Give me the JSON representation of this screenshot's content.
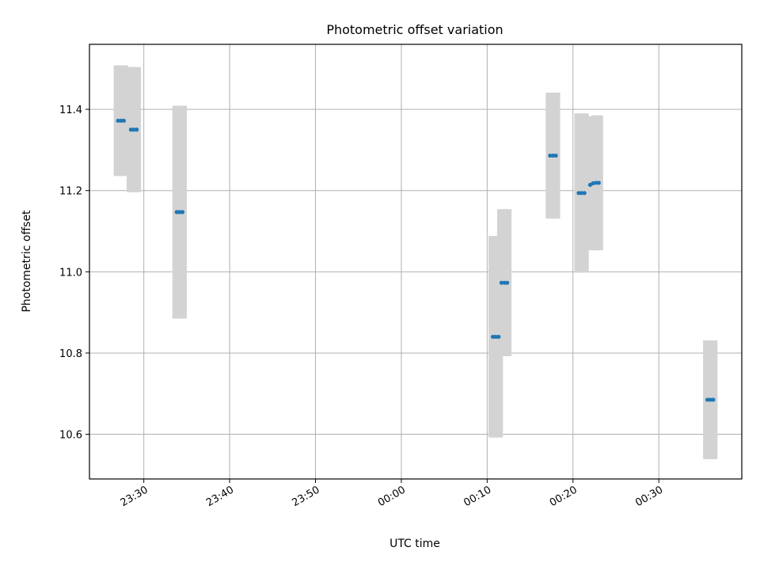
{
  "chart_data": {
    "type": "scatter",
    "title": "Photometric offset variation",
    "xlabel": "UTC time",
    "ylabel": "Photometric offset",
    "x_unit": "UTC HH:MM",
    "xlim": [
      "23:23:40",
      "00:39:40"
    ],
    "ylim": [
      10.49,
      11.56
    ],
    "xticks": [
      "23:30",
      "23:40",
      "23:50",
      "00:00",
      "00:10",
      "00:20",
      "00:30"
    ],
    "yticks": [
      10.6,
      10.8,
      11.0,
      11.2,
      11.4
    ],
    "grid": true,
    "point_color": "#1f77b4",
    "error_band_color": "#d3d3d3",
    "series": [
      {
        "points": [
          {
            "time": "23:27:00",
            "y": 11.372,
            "err": 0.136
          },
          {
            "time": "23:27:20",
            "y": 11.372,
            "err": 0.136
          },
          {
            "time": "23:27:40",
            "y": 11.372,
            "err": 0.136
          },
          {
            "time": "23:28:30",
            "y": 11.35,
            "err": 0.154
          },
          {
            "time": "23:28:50",
            "y": 11.35,
            "err": 0.154
          },
          {
            "time": "23:29:10",
            "y": 11.35,
            "err": 0.154
          },
          {
            "time": "23:33:50",
            "y": 11.147,
            "err": 0.262
          },
          {
            "time": "23:34:10",
            "y": 11.147,
            "err": 0.262
          },
          {
            "time": "23:34:30",
            "y": 11.147,
            "err": 0.262
          },
          {
            "time": "00:10:40",
            "y": 10.84,
            "err": 0.248
          },
          {
            "time": "00:11:00",
            "y": 10.84,
            "err": 0.248
          },
          {
            "time": "00:11:20",
            "y": 10.84,
            "err": 0.248
          },
          {
            "time": "00:11:40",
            "y": 10.973,
            "err": 0.181
          },
          {
            "time": "00:12:00",
            "y": 10.973,
            "err": 0.181
          },
          {
            "time": "00:12:20",
            "y": 10.973,
            "err": 0.181
          },
          {
            "time": "00:17:20",
            "y": 11.286,
            "err": 0.155
          },
          {
            "time": "00:17:40",
            "y": 11.286,
            "err": 0.155
          },
          {
            "time": "00:18:00",
            "y": 11.286,
            "err": 0.155
          },
          {
            "time": "00:20:40",
            "y": 11.194,
            "err": 0.196
          },
          {
            "time": "00:21:00",
            "y": 11.194,
            "err": 0.196
          },
          {
            "time": "00:21:20",
            "y": 11.194,
            "err": 0.196
          },
          {
            "time": "00:22:00",
            "y": 11.214,
            "err": 0.158
          },
          {
            "time": "00:22:20",
            "y": 11.218,
            "err": 0.165
          },
          {
            "time": "00:22:40",
            "y": 11.219,
            "err": 0.166
          },
          {
            "time": "00:23:00",
            "y": 11.219,
            "err": 0.166
          },
          {
            "time": "00:35:40",
            "y": 10.685,
            "err": 0.146
          },
          {
            "time": "00:36:00",
            "y": 10.685,
            "err": 0.146
          },
          {
            "time": "00:36:20",
            "y": 10.685,
            "err": 0.146
          }
        ]
      }
    ]
  }
}
